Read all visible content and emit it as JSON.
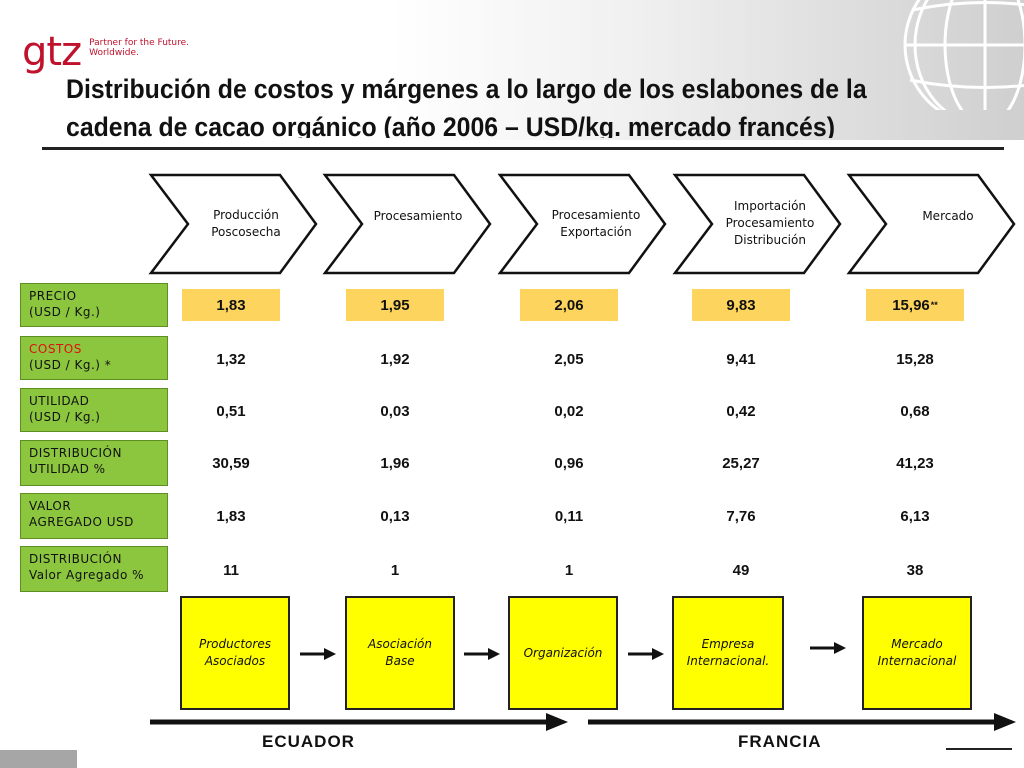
{
  "logo": {
    "wordmark": "gtz",
    "tagline_line1": "Partner for the Future.",
    "tagline_line2": "Worldwide.",
    "color": "#c0122c"
  },
  "title": "Distribución de costos y márgenes a lo largo de los eslabones de la cadena de cacao orgánico (año 2006 – USD/kg. mercado francés)",
  "stages": [
    {
      "label": "Producción\nPoscosecha"
    },
    {
      "label": "Procesamiento"
    },
    {
      "label": "Procesamiento\nExportación"
    },
    {
      "label": "Importación\nProcesamiento\nDistribución"
    },
    {
      "label": "Mercado"
    }
  ],
  "rows": [
    {
      "label_line1": "PRECIO",
      "label_line2": "(USD / Kg.)",
      "values": [
        "1,83",
        "1,95",
        "2,06",
        "9,83",
        "15,96"
      ],
      "last_suffix": "**"
    },
    {
      "label_line1": "COSTOS",
      "label_line2": "(USD / Kg.) *",
      "values": [
        "1,32",
        "1,92",
        "2,05",
        "9,41",
        "15,28"
      ]
    },
    {
      "label_line1": "UTILIDAD",
      "label_line2": "(USD / Kg.)",
      "values": [
        "0,51",
        "0,03",
        "0,02",
        "0,42",
        "0,68"
      ]
    },
    {
      "label_line1": "DISTRIBUCIÓN",
      "label_line2": "UTILIDAD %",
      "values": [
        "30,59",
        "1,96",
        "0,96",
        "25,27",
        "41,23"
      ]
    },
    {
      "label_line1": "VALOR",
      "label_line2": "AGREGADO USD",
      "values": [
        "1,83",
        "0,13",
        "0,11",
        "7,76",
        "6,13"
      ]
    },
    {
      "label_line1": "DISTRIBUCIÓN",
      "label_line2": "Valor Agregado %",
      "values": [
        "11",
        "1",
        "1",
        "49",
        "38"
      ]
    }
  ],
  "actors": [
    {
      "label": "Productores\nAsociados"
    },
    {
      "label": "Asociación\nBase"
    },
    {
      "label": "Organización"
    },
    {
      "label": "Empresa\nInternacional."
    },
    {
      "label": "Mercado\nInternacional"
    }
  ],
  "countries": {
    "left": "ECUADOR",
    "right": "FRANCIA"
  },
  "colors": {
    "label_green": "#8cc63f",
    "price_yellow": "#fdd55e",
    "actor_yellow": "#ffff00",
    "costos_red": "#e01010"
  }
}
